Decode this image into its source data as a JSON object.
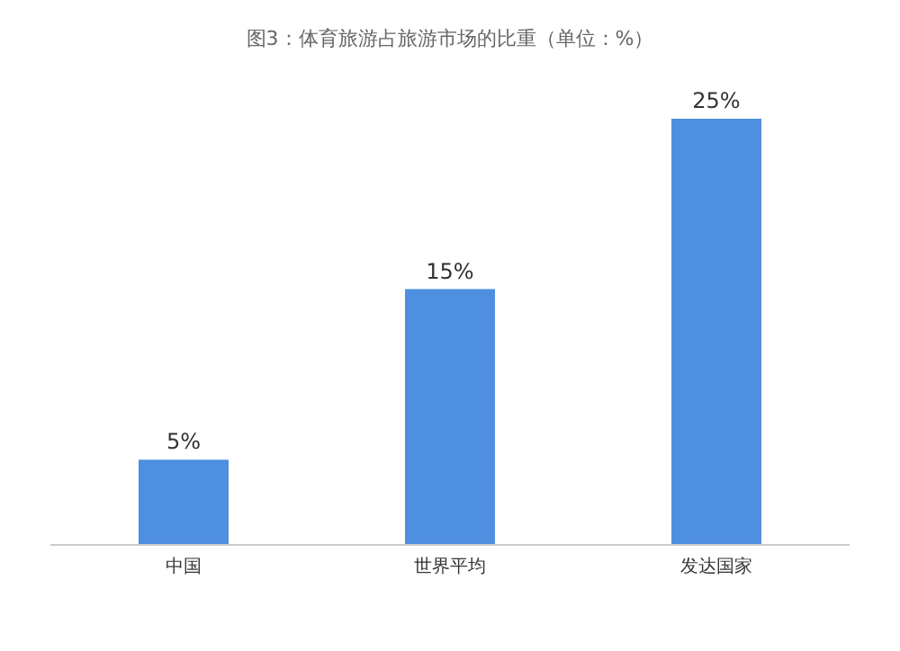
{
  "chart_data": {
    "type": "bar",
    "title": "图3：体育旅游占旅游市场的比重（单位：%）",
    "categories": [
      "中国",
      "世界平均",
      "发达国家"
    ],
    "values": [
      5,
      15,
      25
    ],
    "color": "#4f8fe0",
    "data_labels": true,
    "value_labels": [
      "5%",
      "15%",
      "25%"
    ],
    "grid": false
  }
}
